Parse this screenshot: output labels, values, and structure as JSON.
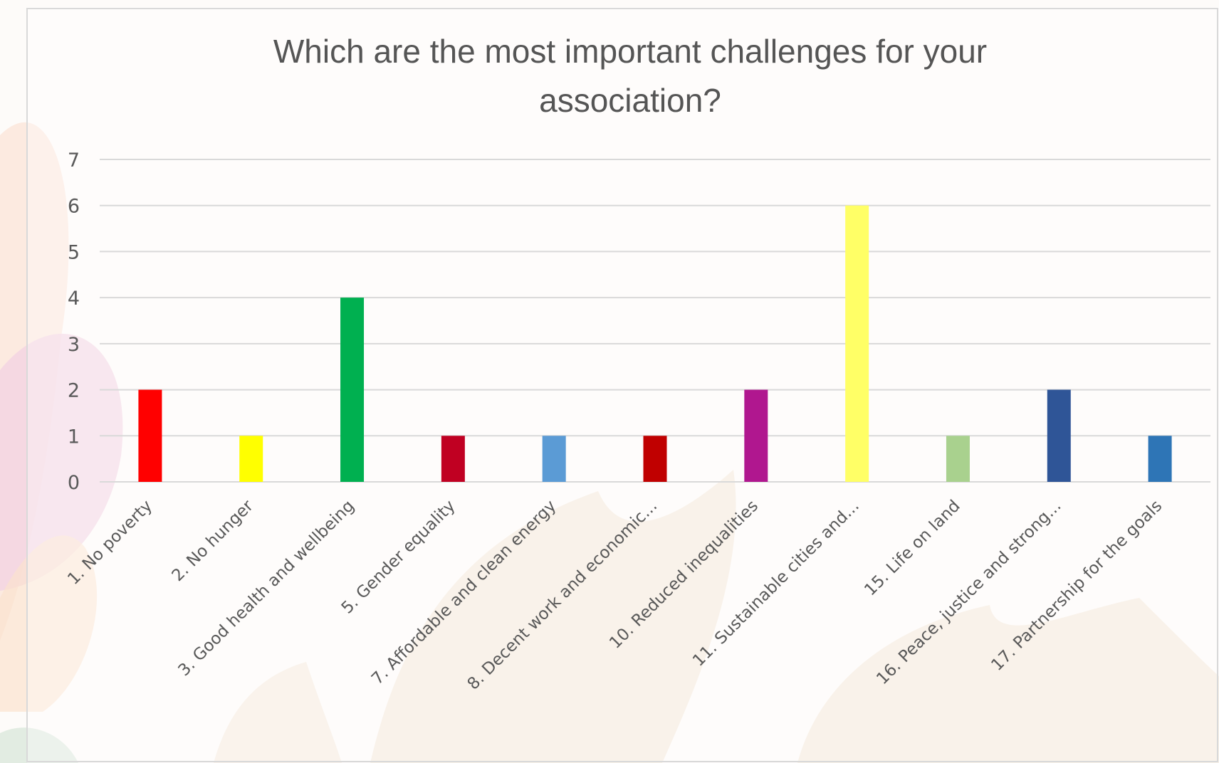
{
  "chart_data": {
    "type": "bar",
    "title_lines": [
      "Which are the most important challenges for your",
      "association?"
    ],
    "xlabel": "",
    "ylabel": "",
    "ylim": [
      0,
      7
    ],
    "yticks": [
      0,
      1,
      2,
      3,
      4,
      5,
      6,
      7
    ],
    "grid": true,
    "legend": "none",
    "categories": [
      "1. No poverty",
      "2. No hunger",
      "3. Good health and wellbeing",
      "5. Gender equality",
      "7. Affordable and clean energy",
      "8. Decent work and economic...",
      "10. Reduced inequalities",
      "11. Sustainable cities and...",
      "15. Life on land",
      "16. Peace, justice and strong...",
      "17. Partnership for the goals"
    ],
    "values": [
      2,
      1,
      4,
      1,
      1,
      1,
      2,
      6,
      1,
      2,
      1
    ],
    "colors": [
      "#ff0000",
      "#ffff00",
      "#00b050",
      "#c00022",
      "#5b9bd5",
      "#c00000",
      "#b0178f",
      "#ffff66",
      "#a9d18e",
      "#2f5597",
      "#2e75b6"
    ]
  }
}
